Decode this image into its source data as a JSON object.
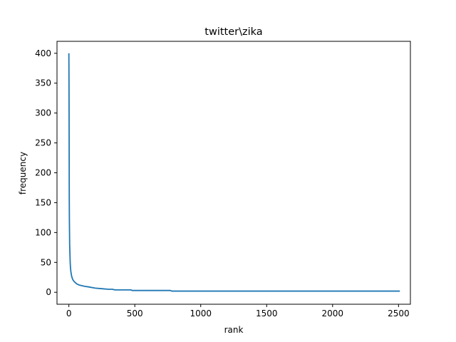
{
  "chart_data": {
    "type": "line",
    "title": "twitter\\zika",
    "xlabel": "rank",
    "ylabel": "frequency",
    "xlim": [
      -90,
      2590
    ],
    "ylim": [
      -20,
      420
    ],
    "x_ticks": [
      0,
      500,
      1000,
      1500,
      2000,
      2500
    ],
    "y_ticks": [
      0,
      50,
      100,
      150,
      200,
      250,
      300,
      350,
      400
    ],
    "grid": false,
    "series": [
      {
        "color": "#1f77b4",
        "x": [
          0,
          1,
          2,
          3,
          4,
          5,
          6,
          8,
          10,
          12,
          15,
          20,
          25,
          30,
          40,
          50,
          60,
          70,
          80,
          100,
          120,
          150,
          200,
          250,
          300,
          330,
          350,
          400,
          470,
          480,
          600,
          700,
          770,
          780,
          1000,
          1500,
          2000,
          2510
        ],
        "y": [
          400,
          350,
          260,
          160,
          120,
          100,
          80,
          65,
          50,
          42,
          35,
          28,
          24,
          21,
          18,
          16,
          14,
          13,
          12,
          11,
          10,
          9,
          7,
          6,
          5,
          5,
          4,
          4,
          4,
          3,
          3,
          3,
          3,
          2,
          2,
          2,
          2,
          2
        ]
      }
    ]
  }
}
